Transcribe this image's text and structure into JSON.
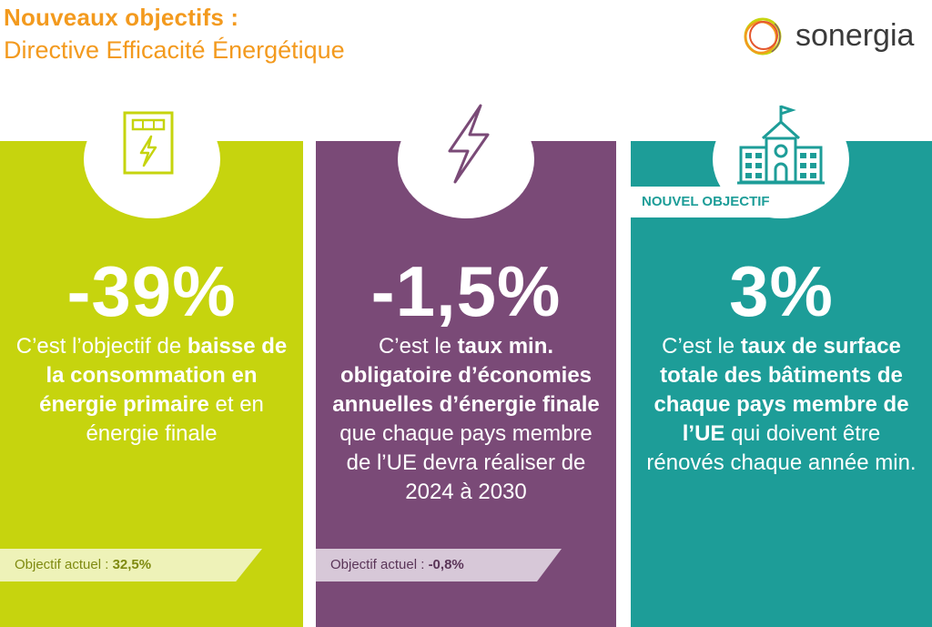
{
  "header": {
    "title_line1": "Nouveaux objectifs :",
    "title_line2": "Directive Efficacité Énergétique"
  },
  "logo": {
    "text": "sonergia",
    "icon": "ring-logo-icon"
  },
  "colors": {
    "orange": "#F39A1E",
    "green": "#C6D40E",
    "purple": "#7A4A77",
    "teal": "#1D9D98"
  },
  "panels": [
    {
      "icon": "electric-meter-icon",
      "big_value": "-39%",
      "desc": [
        {
          "t": "C’est l’objectif de ",
          "b": false
        },
        {
          "t": "baisse de la consommation en énergie primaire",
          "b": true
        },
        {
          "t": " et en énergie finale",
          "b": false
        }
      ],
      "current_label": "Objectif actuel : ",
      "current_value": "32,5%"
    },
    {
      "icon": "lightning-bolt-icon",
      "big_value": "-1,5%",
      "desc": [
        {
          "t": "C’est le ",
          "b": false
        },
        {
          "t": "taux min. obligatoire d’économies annuelles d’énergie finale",
          "b": true
        },
        {
          "t": " que chaque pays membre de l’UE devra réaliser de 2024 à 2030",
          "b": false
        }
      ],
      "current_label": "Objectif actuel : ",
      "current_value": "-0,8%"
    },
    {
      "icon": "public-building-icon",
      "badge": "NOUVEL OBJECTIF",
      "big_value": "3%",
      "desc": [
        {
          "t": "C’est le ",
          "b": false
        },
        {
          "t": "taux de surface totale des bâtiments de chaque pays membre de l’UE",
          "b": true
        },
        {
          "t": " qui doivent être rénovés chaque année min.",
          "b": false
        }
      ]
    }
  ]
}
